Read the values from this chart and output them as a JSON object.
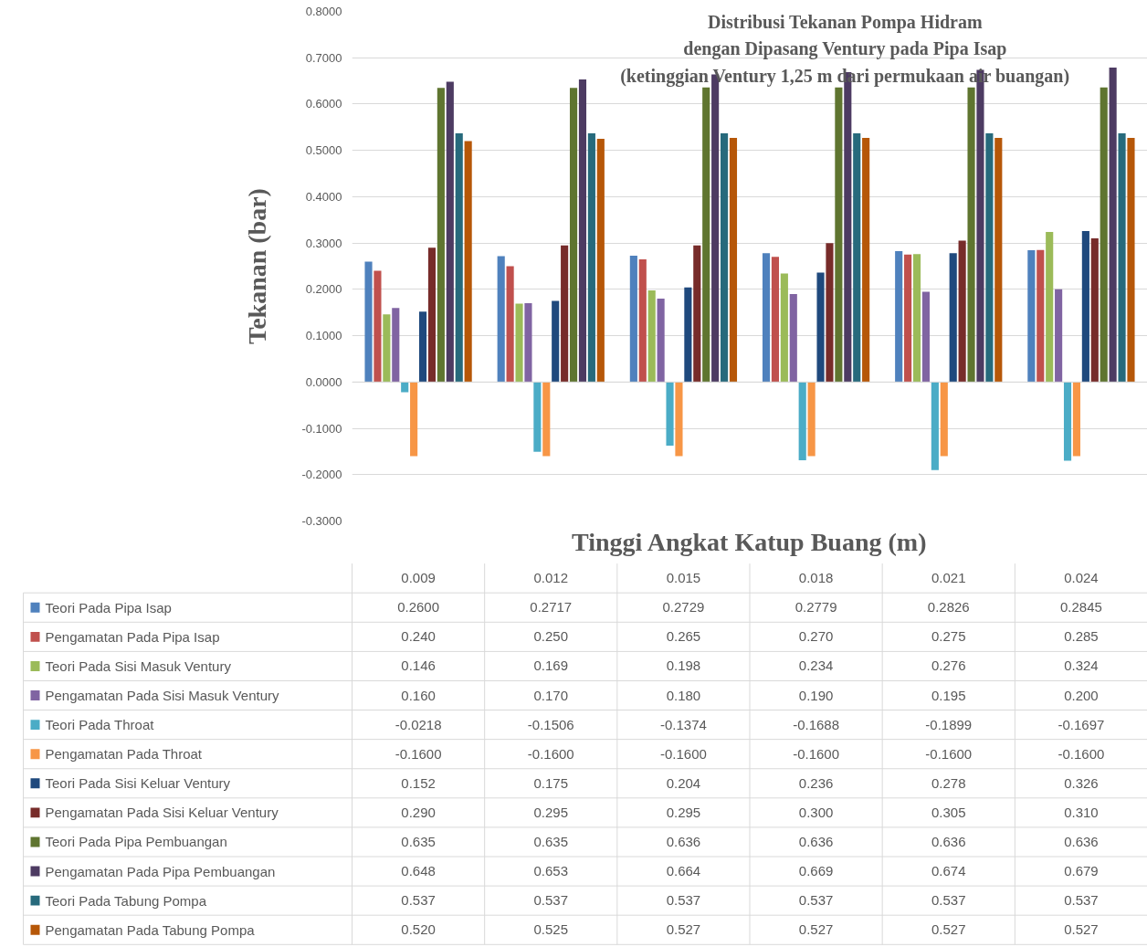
{
  "chart_data": {
    "type": "bar",
    "title": "Distribusi Tekanan Pompa Hidram\ndengan Dipasang Ventury pada Pipa Isap\n(ketinggian Ventury 1,25 m dari permukaan air buangan)",
    "xlabel": "Tinggi Angkat Katup Buang (m)",
    "ylabel": "Tekanan (bar)",
    "categories": [
      "0.009",
      "0.012",
      "0.015",
      "0.018",
      "0.021",
      "0.024"
    ],
    "ylim": [
      -0.3,
      0.8
    ],
    "yticks": [
      {
        "value": -0.3,
        "label": "-0.3000"
      },
      {
        "value": -0.2,
        "label": "-0.2000"
      },
      {
        "value": -0.1,
        "label": "-0.1000"
      },
      {
        "value": 0,
        "label": "0.0000"
      },
      {
        "value": 0.1,
        "label": "0.1000"
      },
      {
        "value": 0.2,
        "label": "0.2000"
      },
      {
        "value": 0.3,
        "label": "0.3000"
      },
      {
        "value": 0.4,
        "label": "0.4000"
      },
      {
        "value": 0.5,
        "label": "0.5000"
      },
      {
        "value": 0.6,
        "label": "0.6000"
      },
      {
        "value": 0.7,
        "label": "0.7000"
      },
      {
        "value": 0.8,
        "label": "0.8000"
      }
    ],
    "grid": "y",
    "legend": "bottom",
    "series": [
      {
        "name": "Teori Pada Pipa Isap",
        "color": "#4f81bd",
        "values": [
          0.26,
          0.2717,
          0.2729,
          0.2779,
          0.2826,
          0.2845
        ],
        "value_labels": [
          "0.2600",
          "0.2717",
          "0.2729",
          "0.2779",
          "0.2826",
          "0.2845"
        ]
      },
      {
        "name": "Pengamatan Pada Pipa Isap",
        "color": "#c0504d",
        "values": [
          0.24,
          0.25,
          0.265,
          0.27,
          0.275,
          0.285
        ],
        "value_labels": [
          "0.240",
          "0.250",
          "0.265",
          "0.270",
          "0.275",
          "0.285"
        ]
      },
      {
        "name": "Teori Pada Sisi Masuk Ventury",
        "color": "#9bbb59",
        "values": [
          0.146,
          0.169,
          0.198,
          0.234,
          0.276,
          0.324
        ],
        "value_labels": [
          "0.146",
          "0.169",
          "0.198",
          "0.234",
          "0.276",
          "0.324"
        ]
      },
      {
        "name": "Pengamatan Pada Sisi Masuk Ventury",
        "color": "#8064a2",
        "values": [
          0.16,
          0.17,
          0.18,
          0.19,
          0.195,
          0.2
        ],
        "value_labels": [
          "0.160",
          "0.170",
          "0.180",
          "0.190",
          "0.195",
          "0.200"
        ]
      },
      {
        "name": "Teori Pada Throat",
        "color": "#4bacc6",
        "values": [
          -0.0218,
          -0.1506,
          -0.1374,
          -0.1688,
          -0.1899,
          -0.1697
        ],
        "value_labels": [
          "-0.0218",
          "-0.1506",
          "-0.1374",
          "-0.1688",
          "-0.1899",
          "-0.1697"
        ]
      },
      {
        "name": "Pengamatan Pada Throat",
        "color": "#f79646",
        "values": [
          -0.16,
          -0.16,
          -0.16,
          -0.16,
          -0.16,
          -0.16
        ],
        "value_labels": [
          "-0.1600",
          "-0.1600",
          "-0.1600",
          "-0.1600",
          "-0.1600",
          "-0.1600"
        ]
      },
      {
        "name": "Teori Pada Sisi Keluar Ventury",
        "color": "#1f497d",
        "values": [
          0.152,
          0.175,
          0.204,
          0.236,
          0.278,
          0.326
        ],
        "value_labels": [
          "0.152",
          "0.175",
          "0.204",
          "0.236",
          "0.278",
          "0.326"
        ]
      },
      {
        "name": "Pengamatan Pada Sisi Keluar Ventury",
        "color": "#772c2a",
        "values": [
          0.29,
          0.295,
          0.295,
          0.3,
          0.305,
          0.31
        ],
        "value_labels": [
          "0.290",
          "0.295",
          "0.295",
          "0.300",
          "0.305",
          "0.310"
        ]
      },
      {
        "name": "Teori Pada Pipa Pembuangan",
        "color": "#5f7530",
        "values": [
          0.635,
          0.635,
          0.636,
          0.636,
          0.636,
          0.636
        ],
        "value_labels": [
          "0.635",
          "0.635",
          "0.636",
          "0.636",
          "0.636",
          "0.636"
        ]
      },
      {
        "name": "Pengamatan Pada Pipa Pembuangan",
        "color": "#4d3b62",
        "values": [
          0.648,
          0.653,
          0.664,
          0.669,
          0.674,
          0.679
        ],
        "value_labels": [
          "0.648",
          "0.653",
          "0.664",
          "0.669",
          "0.674",
          "0.679"
        ]
      },
      {
        "name": "Teori Pada Tabung Pompa",
        "color": "#276a7c",
        "values": [
          0.537,
          0.537,
          0.537,
          0.537,
          0.537,
          0.537
        ],
        "value_labels": [
          "0.537",
          "0.537",
          "0.537",
          "0.537",
          "0.537",
          "0.537"
        ]
      },
      {
        "name": "Pengamatan Pada Tabung Pompa",
        "color": "#b65708",
        "values": [
          0.52,
          0.525,
          0.527,
          0.527,
          0.527,
          0.527
        ],
        "value_labels": [
          "0.520",
          "0.525",
          "0.527",
          "0.527",
          "0.527",
          "0.527"
        ]
      }
    ]
  }
}
